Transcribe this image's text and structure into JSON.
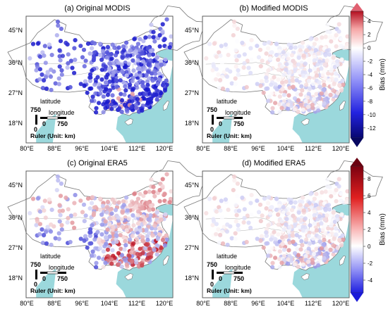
{
  "chart_data": [
    {
      "type": "scatter",
      "title": "(a) Original MODIS",
      "panel": "a",
      "colorbar": "top",
      "x_ticks": [
        "80°E",
        "88°E",
        "96°E",
        "104°E",
        "112°E",
        "120°E"
      ],
      "x_tick_values": [
        80,
        88,
        96,
        104,
        112,
        120
      ],
      "y_ticks": [
        "45°N",
        "36°N",
        "27°N",
        "18°N"
      ],
      "y_tick_values": [
        45,
        36,
        27,
        18
      ],
      "ruler": {
        "latitude_label": "latitude",
        "longitude_label": "longitude",
        "lat_value": "750",
        "zero": "0",
        "lon_zero": "0",
        "lon_value": "750",
        "caption": "Ruler (Unit: km)"
      },
      "bias_profile": "modis_original"
    },
    {
      "type": "scatter",
      "title": "(b) Modified MODIS",
      "panel": "b",
      "colorbar": "top",
      "x_ticks": [
        "80°E",
        "88°E",
        "96°E",
        "104°E",
        "112°E",
        "120°E"
      ],
      "x_tick_values": [
        80,
        88,
        96,
        104,
        112,
        120
      ],
      "y_ticks": [
        "45°N",
        "36°N",
        "27°N",
        "18°N"
      ],
      "y_tick_values": [
        45,
        36,
        27,
        18
      ],
      "ruler": {
        "latitude_label": "latitude",
        "longitude_label": "longitude",
        "lat_value": "750",
        "zero": "0",
        "lon_zero": "0",
        "lon_value": "750",
        "caption": "Ruler (Unit: km)"
      },
      "bias_profile": "modified"
    },
    {
      "type": "scatter",
      "title": "(c) Original ERA5",
      "panel": "c",
      "colorbar": "bottom",
      "x_ticks": [
        "80°E",
        "88°E",
        "96°E",
        "104°E",
        "112°E",
        "120°E"
      ],
      "x_tick_values": [
        80,
        88,
        96,
        104,
        112,
        120
      ],
      "y_ticks": [
        "45°N",
        "36°N",
        "27°N",
        "18°N"
      ],
      "y_tick_values": [
        45,
        36,
        27,
        18
      ],
      "ruler": {
        "latitude_label": "latitude",
        "longitude_label": "longitude",
        "lat_value": "750",
        "zero": "0",
        "lon_zero": "0",
        "lon_value": "750",
        "caption": "Ruler (Unit: km)"
      },
      "bias_profile": "era5_original"
    },
    {
      "type": "scatter",
      "title": "(d) Modified ERA5",
      "panel": "d",
      "colorbar": "bottom",
      "x_ticks": [
        "80°E",
        "88°E",
        "96°E",
        "104°E",
        "112°E",
        "120°E"
      ],
      "x_tick_values": [
        80,
        88,
        96,
        104,
        112,
        120
      ],
      "y_ticks": [
        "45°N",
        "36°N",
        "27°N",
        "18°N"
      ],
      "y_tick_values": [
        45,
        36,
        27,
        18
      ],
      "ruler": {
        "latitude_label": "latitude",
        "longitude_label": "longitude",
        "lat_value": "750",
        "zero": "0",
        "lon_zero": "0",
        "lon_value": "750",
        "caption": "Ruler (Unit: km)"
      },
      "bias_profile": "modified"
    }
  ],
  "colorbars": {
    "top": {
      "label": "Bias  (mm)",
      "ticks": [
        "4",
        "2",
        "0",
        "-2",
        "-4",
        "-6",
        "-8",
        "-10",
        "-12"
      ],
      "tick_values": [
        4,
        2,
        0,
        -2,
        -4,
        -6,
        -8,
        -10,
        -12
      ],
      "range": [
        -13.5,
        5.5
      ]
    },
    "bottom": {
      "label": "Bias  (mm)",
      "ticks": [
        "8",
        "6",
        "4",
        "2",
        "0",
        "-2",
        "-4"
      ],
      "tick_values": [
        8,
        6,
        4,
        2,
        0,
        -2,
        -4
      ],
      "range": [
        -5.5,
        9.5
      ]
    }
  },
  "map": {
    "lon_range": [
      79,
      123
    ],
    "lat_range": [
      13,
      50
    ]
  },
  "colors": {
    "sea": "#9bd8dc",
    "land": "#ffffff",
    "border": "#7a7a7a",
    "positive": "#c8001e",
    "negative": "#1a1ac8",
    "neutral": "#ffffff"
  }
}
